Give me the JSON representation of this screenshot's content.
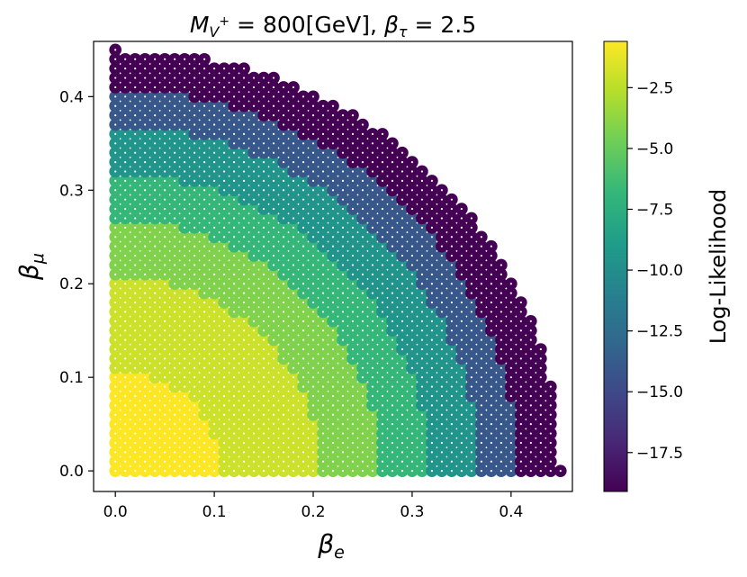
{
  "chart_data": {
    "type": "scatter",
    "title": {
      "m_symbol": "M",
      "m_sub": "V",
      "m_sup": "+",
      "m_eq": " = 800[GeV], ",
      "beta_symbol": "β",
      "beta_sub": "τ",
      "beta_eq": " = 2.5"
    },
    "xlabel": {
      "symbol": "β",
      "sub": "e"
    },
    "ylabel": {
      "symbol": "β",
      "sub": "μ"
    },
    "colorbar_label": "Log-Likelihood",
    "xlim": [
      -0.022,
      0.462
    ],
    "ylim": [
      -0.022,
      0.459
    ],
    "xticks": [
      0.0,
      0.1,
      0.2,
      0.3,
      0.4
    ],
    "xtick_labels": [
      "0.0",
      "0.1",
      "0.2",
      "0.3",
      "0.4"
    ],
    "yticks": [
      0.0,
      0.1,
      0.2,
      0.3,
      0.4
    ],
    "ytick_labels": [
      "0.0",
      "0.1",
      "0.2",
      "0.3",
      "0.4"
    ],
    "grid": false,
    "grid_step": 0.01,
    "max_radius": 0.45,
    "colormap": "viridis",
    "colorbar_range": [
      -19.1,
      -0.6
    ],
    "colorbar_ticks": [
      -2.5,
      -5.0,
      -7.5,
      -10.0,
      -12.5,
      -15.0,
      -17.5
    ],
    "colorbar_tick_labels": [
      "−2.5",
      "−5.0",
      "−7.5",
      "−10.0",
      "−12.5",
      "−15.0",
      "−17.5"
    ],
    "levels": [
      {
        "max_radius": 0.107,
        "value": -0.6
      },
      {
        "max_radius": 0.207,
        "value": -2.0
      },
      {
        "max_radius": 0.267,
        "value": -4.2
      },
      {
        "max_radius": 0.317,
        "value": -6.8
      },
      {
        "max_radius": 0.367,
        "value": -9.5
      },
      {
        "max_radius": 0.407,
        "value": -14.0
      },
      {
        "max_radius": 0.45,
        "value": -19.1
      }
    ],
    "point_color": "#ffffff",
    "viridis_stops": [
      "#440154",
      "#482878",
      "#3e4989",
      "#31688e",
      "#26828e",
      "#1f9e89",
      "#35b779",
      "#6ece58",
      "#b5de2b",
      "#fde725"
    ]
  }
}
